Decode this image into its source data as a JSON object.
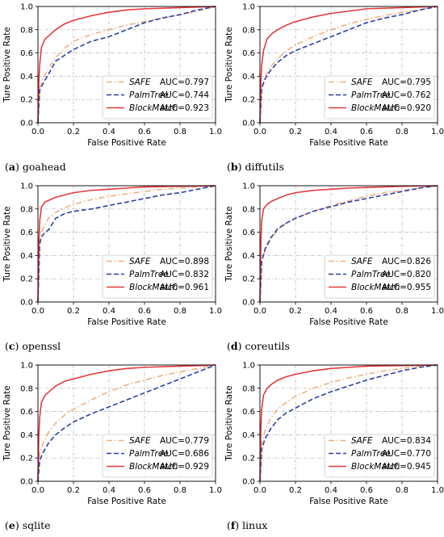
{
  "colors": {
    "safe": "#f2b07e",
    "palmtree": "#2a3fa6",
    "blockmatch": "#e23a3a",
    "grid": "#b0b0b0"
  },
  "chart_data": [
    {
      "type": "line",
      "caption_letter": "(a)",
      "caption_text": "goahead",
      "xlabel": "False Positive Rate",
      "ylabel": "Ture Positive Rate",
      "xlim": [
        0,
        1
      ],
      "ylim": [
        0,
        1
      ],
      "xticks": [
        "0.0",
        "0.2",
        "0.4",
        "0.6",
        "0.8",
        "1.0"
      ],
      "yticks": [
        "0.0",
        "0.2",
        "0.4",
        "0.6",
        "0.8",
        "1.0"
      ],
      "grid": true,
      "legend_position": "lower-right",
      "series": [
        {
          "name": "SAFE",
          "style": "dashdot",
          "auc": "AUC=0.797",
          "x": [
            0,
            0.01,
            0.03,
            0.06,
            0.1,
            0.15,
            0.2,
            0.3,
            0.4,
            0.5,
            0.6,
            0.7,
            0.8,
            0.9,
            1.0
          ],
          "y": [
            0,
            0.3,
            0.38,
            0.47,
            0.56,
            0.64,
            0.7,
            0.76,
            0.8,
            0.84,
            0.87,
            0.9,
            0.93,
            0.96,
            1.0
          ]
        },
        {
          "name": "PalmTree",
          "style": "dashed",
          "auc": "AUC=0.744",
          "x": [
            0,
            0.01,
            0.03,
            0.06,
            0.1,
            0.15,
            0.2,
            0.3,
            0.4,
            0.5,
            0.6,
            0.7,
            0.8,
            0.9,
            1.0
          ],
          "y": [
            0,
            0.28,
            0.34,
            0.42,
            0.53,
            0.58,
            0.63,
            0.7,
            0.74,
            0.8,
            0.86,
            0.9,
            0.93,
            0.97,
            1.0
          ]
        },
        {
          "name": "BlockMatch",
          "style": "solid",
          "auc": "AUC=0.923",
          "x": [
            0,
            0.005,
            0.01,
            0.02,
            0.04,
            0.07,
            0.1,
            0.15,
            0.2,
            0.3,
            0.4,
            0.5,
            0.6,
            0.8,
            1.0
          ],
          "y": [
            0,
            0.35,
            0.5,
            0.65,
            0.72,
            0.76,
            0.8,
            0.85,
            0.88,
            0.92,
            0.95,
            0.97,
            0.98,
            0.99,
            1.0
          ]
        }
      ]
    },
    {
      "type": "line",
      "caption_letter": "(b)",
      "caption_text": "diffutils",
      "xlabel": "False Positive Rate",
      "ylabel": "Ture Positive Rate",
      "xlim": [
        0,
        1
      ],
      "ylim": [
        0,
        1
      ],
      "xticks": [
        "0.0",
        "0.2",
        "0.4",
        "0.6",
        "0.8",
        "1.0"
      ],
      "yticks": [
        "0.0",
        "0.2",
        "0.4",
        "0.6",
        "0.8",
        "1.0"
      ],
      "grid": true,
      "legend_position": "lower-right",
      "series": [
        {
          "name": "SAFE",
          "style": "dashdot",
          "auc": "AUC=0.795",
          "x": [
            0,
            0.01,
            0.03,
            0.06,
            0.1,
            0.15,
            0.2,
            0.3,
            0.4,
            0.5,
            0.6,
            0.7,
            0.8,
            0.9,
            1.0
          ],
          "y": [
            0,
            0.3,
            0.4,
            0.48,
            0.55,
            0.62,
            0.67,
            0.74,
            0.8,
            0.85,
            0.89,
            0.92,
            0.95,
            0.97,
            1.0
          ]
        },
        {
          "name": "PalmTree",
          "style": "dashed",
          "auc": "AUC=0.762",
          "x": [
            0,
            0.01,
            0.03,
            0.06,
            0.1,
            0.15,
            0.2,
            0.3,
            0.4,
            0.5,
            0.6,
            0.7,
            0.8,
            0.9,
            1.0
          ],
          "y": [
            0,
            0.3,
            0.38,
            0.45,
            0.52,
            0.58,
            0.62,
            0.68,
            0.74,
            0.8,
            0.86,
            0.9,
            0.93,
            0.97,
            1.0
          ]
        },
        {
          "name": "BlockMatch",
          "style": "solid",
          "auc": "AUC=0.920",
          "x": [
            0,
            0.005,
            0.01,
            0.02,
            0.04,
            0.07,
            0.1,
            0.15,
            0.2,
            0.3,
            0.4,
            0.5,
            0.6,
            0.8,
            1.0
          ],
          "y": [
            0,
            0.35,
            0.5,
            0.62,
            0.72,
            0.77,
            0.8,
            0.84,
            0.87,
            0.91,
            0.94,
            0.96,
            0.98,
            0.99,
            1.0
          ]
        }
      ]
    },
    {
      "type": "line",
      "caption_letter": "(c)",
      "caption_text": "openssl",
      "xlabel": "False Positive Rate",
      "ylabel": "Ture Positive Rate",
      "xlim": [
        0,
        1
      ],
      "ylim": [
        0,
        1
      ],
      "xticks": [
        "0.0",
        "0.2",
        "0.4",
        "0.6",
        "0.8",
        "1.0"
      ],
      "yticks": [
        "0.0",
        "0.2",
        "0.4",
        "0.6",
        "0.8",
        "1.0"
      ],
      "grid": true,
      "legend_position": "lower-right",
      "series": [
        {
          "name": "SAFE",
          "style": "dashdot",
          "auc": "AUC=0.898",
          "x": [
            0,
            0.01,
            0.02,
            0.04,
            0.06,
            0.1,
            0.15,
            0.2,
            0.3,
            0.4,
            0.5,
            0.6,
            0.7,
            0.8,
            1.0
          ],
          "y": [
            0,
            0.5,
            0.6,
            0.67,
            0.72,
            0.77,
            0.81,
            0.84,
            0.88,
            0.91,
            0.93,
            0.95,
            0.97,
            0.98,
            1.0
          ]
        },
        {
          "name": "PalmTree",
          "style": "dashed",
          "auc": "AUC=0.832",
          "x": [
            0,
            0.01,
            0.02,
            0.04,
            0.06,
            0.1,
            0.15,
            0.2,
            0.3,
            0.4,
            0.5,
            0.6,
            0.7,
            0.8,
            1.0
          ],
          "y": [
            0,
            0.5,
            0.56,
            0.6,
            0.62,
            0.72,
            0.76,
            0.78,
            0.8,
            0.83,
            0.86,
            0.89,
            0.92,
            0.94,
            1.0
          ]
        },
        {
          "name": "BlockMatch",
          "style": "solid",
          "auc": "AUC=0.961",
          "x": [
            0,
            0.005,
            0.01,
            0.02,
            0.04,
            0.07,
            0.1,
            0.15,
            0.2,
            0.3,
            0.4,
            0.5,
            0.6,
            0.8,
            1.0
          ],
          "y": [
            0,
            0.5,
            0.7,
            0.82,
            0.86,
            0.88,
            0.9,
            0.92,
            0.94,
            0.96,
            0.97,
            0.98,
            0.99,
            0.995,
            1.0
          ]
        }
      ]
    },
    {
      "type": "line",
      "caption_letter": "(d)",
      "caption_text": "coreutils",
      "xlabel": "False Positive Rate",
      "ylabel": "Ture Positive Rate",
      "xlim": [
        0,
        1
      ],
      "ylim": [
        0,
        1
      ],
      "xticks": [
        "0.0",
        "0.2",
        "0.4",
        "0.6",
        "0.8",
        "1.0"
      ],
      "yticks": [
        "0.0",
        "0.2",
        "0.4",
        "0.6",
        "0.8",
        "1.0"
      ],
      "grid": true,
      "legend_position": "lower-right",
      "series": [
        {
          "name": "SAFE",
          "style": "dashdot",
          "auc": "AUC=0.826",
          "x": [
            0,
            0.01,
            0.03,
            0.06,
            0.1,
            0.15,
            0.2,
            0.3,
            0.4,
            0.5,
            0.6,
            0.7,
            0.8,
            0.9,
            1.0
          ],
          "y": [
            0,
            0.35,
            0.45,
            0.54,
            0.62,
            0.68,
            0.72,
            0.78,
            0.83,
            0.87,
            0.91,
            0.94,
            0.96,
            0.98,
            1.0
          ]
        },
        {
          "name": "PalmTree",
          "style": "dashed",
          "auc": "AUC=0.820",
          "x": [
            0,
            0.01,
            0.03,
            0.06,
            0.1,
            0.15,
            0.2,
            0.3,
            0.4,
            0.5,
            0.6,
            0.7,
            0.8,
            0.9,
            1.0
          ],
          "y": [
            0,
            0.35,
            0.46,
            0.55,
            0.63,
            0.68,
            0.72,
            0.78,
            0.82,
            0.86,
            0.89,
            0.92,
            0.95,
            0.98,
            1.0
          ]
        },
        {
          "name": "BlockMatch",
          "style": "solid",
          "auc": "AUC=0.955",
          "x": [
            0,
            0.005,
            0.01,
            0.02,
            0.04,
            0.07,
            0.1,
            0.15,
            0.2,
            0.3,
            0.4,
            0.5,
            0.6,
            0.8,
            1.0
          ],
          "y": [
            0,
            0.5,
            0.7,
            0.8,
            0.84,
            0.87,
            0.89,
            0.92,
            0.94,
            0.96,
            0.97,
            0.98,
            0.985,
            0.995,
            1.0
          ]
        }
      ]
    },
    {
      "type": "line",
      "caption_letter": "(e)",
      "caption_text": "sqlite",
      "xlabel": "False Positive Rate",
      "ylabel": "Ture Positive Rate",
      "xlim": [
        0,
        1
      ],
      "ylim": [
        0,
        1
      ],
      "xticks": [
        "0.0",
        "0.2",
        "0.4",
        "0.6",
        "0.8",
        "1.0"
      ],
      "yticks": [
        "0.0",
        "0.2",
        "0.4",
        "0.6",
        "0.8",
        "1.0"
      ],
      "grid": true,
      "legend_position": "lower-right",
      "series": [
        {
          "name": "SAFE",
          "style": "dashdot",
          "auc": "AUC=0.779",
          "x": [
            0,
            0.01,
            0.03,
            0.06,
            0.1,
            0.15,
            0.2,
            0.3,
            0.4,
            0.5,
            0.6,
            0.7,
            0.8,
            0.9,
            1.0
          ],
          "y": [
            0,
            0.25,
            0.33,
            0.42,
            0.5,
            0.57,
            0.62,
            0.7,
            0.77,
            0.83,
            0.87,
            0.91,
            0.94,
            0.97,
            1.0
          ]
        },
        {
          "name": "PalmTree",
          "style": "dashed",
          "auc": "AUC=0.686",
          "x": [
            0,
            0.01,
            0.03,
            0.06,
            0.1,
            0.15,
            0.2,
            0.3,
            0.4,
            0.5,
            0.6,
            0.7,
            0.8,
            0.9,
            1.0
          ],
          "y": [
            0,
            0.18,
            0.25,
            0.33,
            0.4,
            0.46,
            0.51,
            0.58,
            0.64,
            0.7,
            0.76,
            0.82,
            0.88,
            0.94,
            1.0
          ]
        },
        {
          "name": "BlockMatch",
          "style": "solid",
          "auc": "AUC=0.929",
          "x": [
            0,
            0.005,
            0.01,
            0.02,
            0.04,
            0.07,
            0.1,
            0.15,
            0.2,
            0.3,
            0.4,
            0.5,
            0.6,
            0.8,
            1.0
          ],
          "y": [
            0,
            0.4,
            0.55,
            0.68,
            0.74,
            0.78,
            0.82,
            0.86,
            0.88,
            0.92,
            0.95,
            0.97,
            0.98,
            0.99,
            1.0
          ]
        }
      ]
    },
    {
      "type": "line",
      "caption_letter": "(f)",
      "caption_text": "linux",
      "xlabel": "False Positive Rate",
      "ylabel": "Ture Positive Rate",
      "xlim": [
        0,
        1
      ],
      "ylim": [
        0,
        1
      ],
      "xticks": [
        "0.0",
        "0.2",
        "0.4",
        "0.6",
        "0.8",
        "1.0"
      ],
      "yticks": [
        "0.0",
        "0.2",
        "0.4",
        "0.6",
        "0.8",
        "1.0"
      ],
      "grid": true,
      "legend_position": "lower-right",
      "series": [
        {
          "name": "SAFE",
          "style": "dashdot",
          "auc": "AUC=0.834",
          "x": [
            0,
            0.01,
            0.03,
            0.06,
            0.1,
            0.15,
            0.2,
            0.3,
            0.4,
            0.5,
            0.6,
            0.7,
            0.8,
            0.9,
            1.0
          ],
          "y": [
            0,
            0.33,
            0.44,
            0.54,
            0.62,
            0.68,
            0.73,
            0.8,
            0.85,
            0.89,
            0.92,
            0.95,
            0.97,
            0.99,
            1.0
          ]
        },
        {
          "name": "PalmTree",
          "style": "dashed",
          "auc": "AUC=0.770",
          "x": [
            0,
            0.01,
            0.03,
            0.06,
            0.1,
            0.15,
            0.2,
            0.3,
            0.4,
            0.5,
            0.6,
            0.7,
            0.8,
            0.9,
            1.0
          ],
          "y": [
            0,
            0.28,
            0.37,
            0.45,
            0.53,
            0.59,
            0.63,
            0.71,
            0.77,
            0.82,
            0.87,
            0.91,
            0.95,
            0.98,
            1.0
          ]
        },
        {
          "name": "BlockMatch",
          "style": "solid",
          "auc": "AUC=0.945",
          "x": [
            0,
            0.005,
            0.01,
            0.02,
            0.04,
            0.07,
            0.1,
            0.15,
            0.2,
            0.3,
            0.4,
            0.5,
            0.6,
            0.8,
            1.0
          ],
          "y": [
            0,
            0.45,
            0.62,
            0.74,
            0.8,
            0.84,
            0.87,
            0.9,
            0.92,
            0.95,
            0.97,
            0.98,
            0.99,
            0.995,
            1.0
          ]
        }
      ]
    }
  ]
}
